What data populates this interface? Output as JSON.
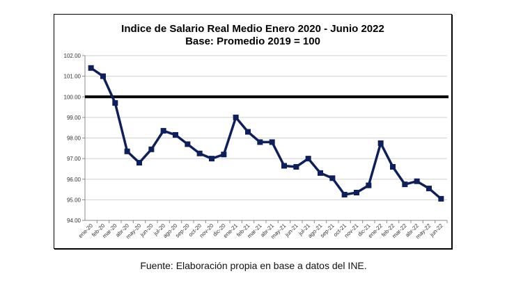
{
  "chart_data": {
    "type": "line",
    "title": "Indice de Salario Real Medio Enero 2020 - Junio 2022",
    "subtitle": "Base: Promedio 2019 = 100",
    "xlabel": "",
    "ylabel": "",
    "ylim": [
      94,
      102
    ],
    "yticks": [
      "94.00",
      "95.00",
      "96.00",
      "97.00",
      "98.00",
      "99.00",
      "100.00",
      "101.00",
      "102.00"
    ],
    "grid": true,
    "reference_line": 100,
    "line_color": "#0d1f5c",
    "categories": [
      "ene-20",
      "feb-20",
      "mar-20",
      "abr-20",
      "may-20",
      "jun-20",
      "jul-20",
      "ago-20",
      "sep-20",
      "oct-20",
      "nov-20",
      "dic-20",
      "ene-21",
      "feb-21",
      "mar-21",
      "abr-21",
      "may-21",
      "jun-21",
      "jul-21",
      "ago-21",
      "sep-21",
      "oct-21",
      "nov-21",
      "dic-21",
      "ene-22",
      "feb-22",
      "mar-22",
      "abr-22",
      "may-22",
      "jun-22"
    ],
    "values": [
      101.4,
      101.0,
      99.7,
      97.35,
      96.8,
      97.45,
      98.35,
      98.15,
      97.7,
      97.25,
      97.0,
      97.2,
      99.0,
      98.3,
      97.8,
      97.8,
      96.65,
      96.6,
      97.0,
      96.3,
      96.05,
      95.25,
      95.35,
      95.7,
      97.75,
      96.6,
      95.75,
      95.9,
      95.55,
      95.05
    ]
  },
  "footnote": "Fuente: Elaboración propia en base a datos del INE."
}
